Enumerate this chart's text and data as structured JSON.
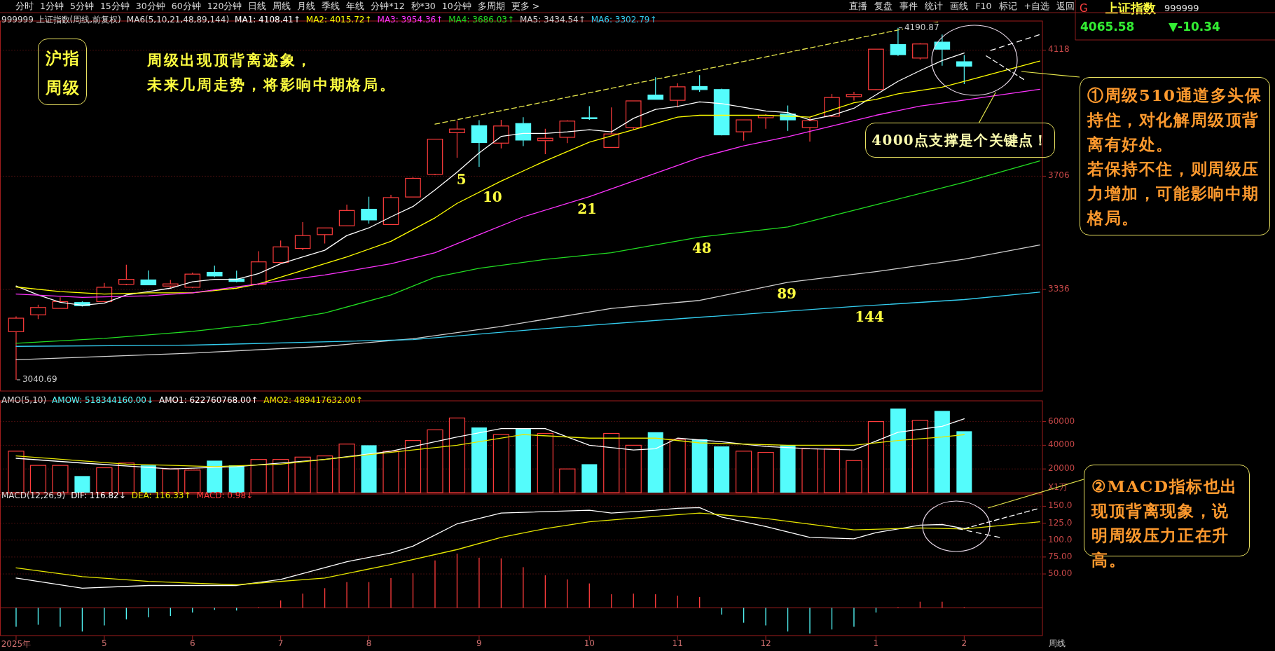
{
  "chart_data": [
    {
      "type": "candlestick",
      "title": "999999 上证指数(周线,前复权)",
      "legend_title": "MA6(5,10,21,48,89,144)",
      "legend": "top left",
      "grid": "y",
      "tick_labels": "y",
      "xlim": [
        "2025-04-02",
        "2026-02-26T20:00"
      ],
      "ylim": [
        3004,
        4213
      ],
      "yticks": [
        3336,
        3706,
        4118
      ],
      "x": [
        "2025-04-07",
        "2025-04-14",
        "2025-04-21",
        "2025-04-28",
        "2025-05-05",
        "2025-05-12",
        "2025-05-19",
        "2025-05-26",
        "2025-06-02",
        "2025-06-09",
        "2025-06-16",
        "2025-06-23",
        "2025-06-30",
        "2025-07-07",
        "2025-07-14",
        "2025-07-21",
        "2025-07-28",
        "2025-08-04",
        "2025-08-11",
        "2025-08-18",
        "2025-08-25",
        "2025-09-01",
        "2025-09-08",
        "2025-09-15",
        "2025-09-22",
        "2025-09-29",
        "2025-10-06",
        "2025-10-13",
        "2025-10-20",
        "2025-10-27",
        "2025-11-03",
        "2025-11-10",
        "2025-11-17",
        "2025-11-24",
        "2025-12-01",
        "2025-12-08",
        "2025-12-15",
        "2025-12-22",
        "2025-12-29",
        "2026-01-05",
        "2026-01-12",
        "2026-01-19",
        "2026-01-26",
        "2026-02-02"
      ],
      "ohlc": [
        [
          3198,
          3248,
          3040.69,
          3242
        ],
        [
          3253,
          3286,
          3239,
          3277
        ],
        [
          3274,
          3310,
          3274,
          3296
        ],
        [
          3293,
          3297,
          3280,
          3283
        ],
        [
          3296,
          3357,
          3294,
          3343
        ],
        [
          3353,
          3417,
          3350,
          3369
        ],
        [
          3367,
          3398,
          3350,
          3351
        ],
        [
          3347,
          3367,
          3340,
          3354
        ],
        [
          3343,
          3391,
          3340,
          3386
        ],
        [
          3392,
          3414,
          3376,
          3380
        ],
        [
          3370,
          3397,
          3359,
          3362
        ],
        [
          3353,
          3461,
          3350,
          3426
        ],
        [
          3424,
          3496,
          3423,
          3475
        ],
        [
          3470,
          3556,
          3464,
          3512
        ],
        [
          3515,
          3537,
          3486,
          3537
        ],
        [
          3544,
          3613,
          3543,
          3594
        ],
        [
          3598,
          3639,
          3551,
          3563
        ],
        [
          3548,
          3645,
          3548,
          3636
        ],
        [
          3638,
          3703,
          3638,
          3699
        ],
        [
          3712,
          3827,
          3709,
          3827
        ],
        [
          3848,
          3887,
          3766,
          3860
        ],
        [
          3871,
          3889,
          3737,
          3816
        ],
        [
          3814,
          3890,
          3797,
          3870
        ],
        [
          3878,
          3899,
          3804,
          3824
        ],
        [
          3822,
          3861,
          3778,
          3830
        ],
        [
          3833,
          3889,
          3814,
          3886
        ],
        [
          3897,
          3935,
          3890,
          3894
        ],
        [
          3800,
          3931,
          3800,
          3844
        ],
        [
          3865,
          3952,
          3858,
          3952
        ],
        [
          3971,
          4029,
          3957,
          3957
        ],
        [
          3954,
          4010,
          3931,
          3998
        ],
        [
          3999,
          4036,
          3982,
          3989
        ],
        [
          3989,
          3992,
          3839,
          3841
        ],
        [
          3851,
          3890,
          3822,
          3890
        ],
        [
          3897,
          3909,
          3861,
          3905
        ],
        [
          3909,
          3937,
          3854,
          3890
        ],
        [
          3865,
          3899,
          3819,
          3887
        ],
        [
          3902,
          3975,
          3899,
          3963
        ],
        [
          3966,
          3982,
          3953,
          3973
        ],
        [
          3989,
          4121,
          3987,
          4121
        ],
        [
          4136,
          4190.87,
          4099,
          4103
        ],
        [
          4092,
          4141,
          4087,
          4138
        ],
        [
          4144,
          4169,
          4067,
          4121
        ],
        [
          4080,
          4102,
          4007,
          4065.58
        ]
      ],
      "colors": [
        "#ff3c3c",
        "#ff3c3c",
        "#ff3c3c",
        "#54fcfc",
        "#ff3c3c",
        "#ff3c3c",
        "#54fcfc",
        "#ff3c3c",
        "#ff3c3c",
        "#54fcfc",
        "#54fcfc",
        "#ff3c3c",
        "#ff3c3c",
        "#ff3c3c",
        "#ff3c3c",
        "#ff3c3c",
        "#54fcfc",
        "#ff3c3c",
        "#ff3c3c",
        "#ff3c3c",
        "#ff3c3c",
        "#54fcfc",
        "#ff3c3c",
        "#54fcfc",
        "#ff3c3c",
        "#ff3c3c",
        "#54fcfc",
        "#ff3c3c",
        "#ff3c3c",
        "#54fcfc",
        "#ff3c3c",
        "#54fcfc",
        "#54fcfc",
        "#ff3c3c",
        "#ff3c3c",
        "#54fcfc",
        "#ff3c3c",
        "#ff3c3c",
        "#ff3c3c",
        "#ff3c3c",
        "#54fcfc",
        "#ff3c3c",
        "#54fcfc",
        "#54fcfc"
      ],
      "series": [
        {
          "type": "line",
          "name": "MA1: 4108.41↑",
          "color": "#ffffff",
          "x": [
            "2025-04-07",
            "2025-04-14",
            "2025-04-21",
            "2025-04-28",
            "2025-05-05",
            "2025-05-12",
            "2025-05-19",
            "2025-05-26",
            "2025-06-02",
            "2025-06-09",
            "2025-06-16",
            "2025-06-23",
            "2025-06-30",
            "2025-07-07",
            "2025-07-14",
            "2025-07-21",
            "2025-07-28",
            "2025-08-04",
            "2025-08-11",
            "2025-08-18",
            "2025-08-25",
            "2025-09-01",
            "2025-09-08",
            "2025-09-15",
            "2025-09-22",
            "2025-09-29",
            "2025-10-06",
            "2025-10-13",
            "2025-10-20",
            "2025-10-27",
            "2025-11-03",
            "2025-11-10",
            "2025-11-17",
            "2025-11-24",
            "2025-12-01",
            "2025-12-08",
            "2025-12-15",
            "2025-12-22",
            "2025-12-29",
            "2026-01-05",
            "2026-01-12",
            "2026-01-19",
            "2026-01-26",
            "2026-02-02"
          ],
          "values": [
            3347,
            3318,
            3294,
            3284,
            3291,
            3318,
            3329,
            3340,
            3361,
            3369,
            3369,
            3388,
            3420,
            3442,
            3464,
            3512,
            3537,
            3573,
            3607,
            3661,
            3719,
            3782,
            3836,
            3846,
            3846,
            3851,
            3858,
            3851,
            3895,
            3924,
            3934,
            3949,
            3943,
            3931,
            3919,
            3914,
            3890,
            3905,
            3928,
            3972,
            4016,
            4051,
            4084,
            4108.41
          ]
        },
        {
          "type": "line",
          "name": "MA2: 4015.72↑",
          "color": "#ffff00",
          "x": [
            "2025-04-07",
            "2025-04-21",
            "2025-05-05",
            "2025-05-19",
            "2025-06-02",
            "2025-06-16",
            "2025-06-23",
            "2025-07-07",
            "2025-07-21",
            "2025-08-04",
            "2025-08-18",
            "2025-08-25",
            "2025-09-08",
            "2025-09-22",
            "2025-10-06",
            "2025-10-20",
            "2025-11-03",
            "2025-11-10",
            "2025-11-17",
            "2025-12-01",
            "2025-12-15",
            "2025-12-29",
            "2026-01-05",
            "2026-01-12",
            "2026-01-26",
            "2026-02-02",
            "2026-02-26"
          ],
          "values": [
            3344,
            3329,
            3321,
            3325,
            3325,
            3340,
            3354,
            3398,
            3442,
            3493,
            3570,
            3617,
            3690,
            3756,
            3817,
            3858,
            3899,
            3905,
            3905,
            3905,
            3899,
            3946,
            3957,
            3975,
            3997,
            4015.72,
            4082
          ]
        },
        {
          "type": "line",
          "name": "MA3: 3954.36↑",
          "color": "#ff33ff",
          "x": [
            "2025-04-07",
            "2025-04-28",
            "2025-05-19",
            "2025-06-02",
            "2025-06-23",
            "2025-07-14",
            "2025-08-04",
            "2025-08-18",
            "2025-09-01",
            "2025-09-15",
            "2025-10-06",
            "2025-10-20",
            "2025-11-03",
            "2025-11-10",
            "2025-11-24",
            "2025-12-08",
            "2025-12-22",
            "2026-01-05",
            "2026-01-19",
            "2026-02-02",
            "2026-02-26"
          ],
          "values": [
            3321,
            3310,
            3315,
            3325,
            3354,
            3383,
            3420,
            3456,
            3515,
            3573,
            3639,
            3690,
            3741,
            3767,
            3805,
            3835,
            3870,
            3905,
            3935,
            3954.36,
            3990
          ]
        },
        {
          "type": "line",
          "name": "MA4: 3686.03↑",
          "color": "#22dd22",
          "x": [
            "2025-04-07",
            "2025-05-05",
            "2025-06-02",
            "2025-06-23",
            "2025-07-14",
            "2025-08-04",
            "2025-08-18",
            "2025-09-01",
            "2025-09-22",
            "2025-10-13",
            "2025-11-10",
            "2025-12-08",
            "2026-01-05",
            "2026-02-02",
            "2026-02-26"
          ],
          "values": [
            3160,
            3176,
            3199,
            3223,
            3259,
            3318,
            3376,
            3405,
            3434,
            3456,
            3507,
            3540,
            3613,
            3686.03,
            3756
          ]
        },
        {
          "type": "line",
          "name": "MA5: 3434.54↑",
          "color": "#d0d0d0",
          "x": [
            "2025-04-07",
            "2025-06-02",
            "2025-07-14",
            "2025-08-11",
            "2025-09-08",
            "2025-10-13",
            "2025-11-10",
            "2025-12-08",
            "2026-01-05",
            "2026-02-02",
            "2026-02-26"
          ],
          "values": [
            3106,
            3128,
            3150,
            3175,
            3215,
            3274,
            3300,
            3359,
            3394,
            3434.54,
            3481
          ]
        },
        {
          "type": "line",
          "name": "MA6: 3302.79↑",
          "color": "#33ccee",
          "x": [
            "2025-04-07",
            "2025-06-02",
            "2025-08-11",
            "2025-09-22",
            "2025-11-10",
            "2025-12-29",
            "2026-02-02",
            "2026-02-26"
          ],
          "values": [
            3150,
            3154,
            3172,
            3208,
            3245,
            3280,
            3302.79,
            3327
          ]
        },
        {
          "type": "line",
          "color": "#e6e64c",
          "line_style": "dashed",
          "x": [
            "2025-08-18",
            "2026-01-24T14:00"
          ],
          "values": [
            3876,
            4210
          ]
        },
        {
          "type": "line",
          "color": "#ffffff",
          "line_style": "dashed",
          "x": [
            "2026-02-10T10:00",
            "2026-02-25T19:00"
          ],
          "values": [
            4117,
            4168
          ]
        },
        {
          "type": "line",
          "color": "#ffffff",
          "line_style": "dashed",
          "x": [
            "2026-02-09",
            "2026-02-20T22:00"
          ],
          "values": [
            4099,
            4022
          ]
        }
      ],
      "annotations": [
        "沪指周级",
        "周级出现顶背离迹象，",
        "未来几周走势，将影响中期格局。",
        {
          "text": "4000点支撑是个关键点！",
          "x": "2026-02-12",
          "y": 3980
        },
        "①周级510通道多头保持住，对化解周级顶背离有好处。",
        "若保持不住，则周级压力增加，可能影响中期格局。",
        {
          "text": "5",
          "x": "2025-08-26T10:00",
          "y": 3732
        },
        {
          "text": "10",
          "x": "2025-09-05T05:00",
          "y": 3675
        },
        {
          "text": "21",
          "x": "2025-10-05T07:00",
          "y": 3637
        },
        {
          "text": "48",
          "x": "2025-11-10T17:00",
          "y": 3507
        },
        {
          "text": "89",
          "x": "2025-12-07T16:00",
          "y": 3359
        },
        {
          "text": "144",
          "x": "2026-01-02T22:00",
          "y": 3283
        },
        {
          "text": "4190.87",
          "x": "2026-01-12",
          "y": 4190.87
        },
        {
          "text": "3040.69",
          "x": "2025-04-07",
          "y": 3040.69
        }
      ]
    },
    {
      "type": "bar",
      "title": "AMO(5,10)",
      "legend": "top left",
      "grid": "y",
      "tick_labels": "y",
      "xlim": [
        "2025-04-02",
        "2026-02-26T20:00"
      ],
      "ylim": [
        0,
        77500
      ],
      "yticks": [
        20000,
        40000,
        60000
      ],
      "x": [
        "2025-04-07",
        "2025-04-14",
        "2025-04-21",
        "2025-04-28",
        "2025-05-05",
        "2025-05-12",
        "2025-05-19",
        "2025-05-26",
        "2025-06-02",
        "2025-06-09",
        "2025-06-16",
        "2025-06-23",
        "2025-06-30",
        "2025-07-07",
        "2025-07-14",
        "2025-07-21",
        "2025-07-28",
        "2025-08-04",
        "2025-08-11",
        "2025-08-18",
        "2025-08-25",
        "2025-09-01",
        "2025-09-08",
        "2025-09-15",
        "2025-09-22",
        "2025-09-29",
        "2025-10-06",
        "2025-10-13",
        "2025-10-20",
        "2025-10-27",
        "2025-11-03",
        "2025-11-10",
        "2025-11-17",
        "2025-11-24",
        "2025-12-01",
        "2025-12-08",
        "2025-12-15",
        "2025-12-22",
        "2025-12-29",
        "2026-01-05",
        "2026-01-12",
        "2026-01-19",
        "2026-01-26",
        "2026-02-02"
      ],
      "series": [
        {
          "type": "bar",
          "name": "AMOW: 518344160.00↓",
          "values": [
            35000,
            23000,
            23000,
            14000,
            21000,
            25000,
            23000,
            20000,
            19000,
            27000,
            23000,
            28000,
            28000,
            30000,
            31000,
            41000,
            40000,
            35000,
            44000,
            53000,
            63000,
            55000,
            49000,
            54000,
            50000,
            20000,
            24000,
            50000,
            40000,
            51000,
            45000,
            45000,
            39000,
            35000,
            34000,
            40000,
            37000,
            37000,
            27000,
            60000,
            71000,
            61000,
            69000,
            51834
          ],
          "colors": [
            "#ff3c3c",
            "#ff3c3c",
            "#ff3c3c",
            "#54fcfc",
            "#ff3c3c",
            "#ff3c3c",
            "#54fcfc",
            "#ff3c3c",
            "#ff3c3c",
            "#54fcfc",
            "#54fcfc",
            "#ff3c3c",
            "#ff3c3c",
            "#ff3c3c",
            "#ff3c3c",
            "#ff3c3c",
            "#54fcfc",
            "#ff3c3c",
            "#ff3c3c",
            "#ff3c3c",
            "#ff3c3c",
            "#54fcfc",
            "#ff3c3c",
            "#54fcfc",
            "#ff3c3c",
            "#ff3c3c",
            "#54fcfc",
            "#ff3c3c",
            "#ff3c3c",
            "#54fcfc",
            "#ff3c3c",
            "#54fcfc",
            "#54fcfc",
            "#ff3c3c",
            "#ff3c3c",
            "#54fcfc",
            "#ff3c3c",
            "#ff3c3c",
            "#ff3c3c",
            "#ff3c3c",
            "#54fcfc",
            "#ff3c3c",
            "#54fcfc",
            "#54fcfc"
          ]
        },
        {
          "type": "line",
          "name": "AMO1: 622760768.00↑",
          "color": "#ffffff",
          "x": [
            "2025-04-07",
            "2025-04-28",
            "2025-05-26",
            "2025-06-16",
            "2025-07-14",
            "2025-08-04",
            "2025-08-25",
            "2025-09-08",
            "2025-09-22",
            "2025-10-06",
            "2025-10-20",
            "2025-10-27",
            "2025-11-03",
            "2025-11-17",
            "2025-12-01",
            "2025-12-15",
            "2025-12-29",
            "2026-01-12",
            "2026-01-26",
            "2026-02-02"
          ],
          "values": [
            29000,
            25000,
            20000,
            22000,
            28000,
            35000,
            47000,
            54000,
            54000,
            40000,
            36000,
            37000,
            46000,
            43000,
            39000,
            37000,
            36000,
            51000,
            56000,
            62276
          ]
        },
        {
          "type": "line",
          "name": "AMO2: 489417632.00↑",
          "color": "#e6e600",
          "x": [
            "2025-04-07",
            "2025-05-12",
            "2025-06-09",
            "2025-06-30",
            "2025-07-28",
            "2025-08-25",
            "2025-09-15",
            "2025-10-06",
            "2025-10-27",
            "2025-11-10",
            "2025-12-08",
            "2025-12-29",
            "2026-01-12",
            "2026-01-26",
            "2026-02-02"
          ],
          "values": [
            31000,
            24000,
            22000,
            24000,
            32000,
            40000,
            49000,
            46000,
            46000,
            42000,
            40000,
            40000,
            44000,
            47000,
            48942
          ]
        }
      ],
      "annotations": [
        "X1万"
      ]
    },
    {
      "type": "line",
      "title": "MACD(12,26,9)",
      "legend": "top left",
      "grid": "y",
      "xlim": [
        "2025-04-02",
        "2026-02-26T20:00"
      ],
      "ylim": [
        -41,
        168
      ],
      "ref_lines": [
        {
          "axis": "y",
          "value": 0,
          "color": "#a02020"
        }
      ],
      "yticks": [
        {
          "value": 50,
          "label": "50.00"
        },
        {
          "value": 75,
          "label": "75.00"
        },
        {
          "value": 100,
          "label": "100.0"
        },
        {
          "value": 125,
          "label": "125.0"
        },
        {
          "value": 150,
          "label": "150.0"
        }
      ],
      "xticks": [
        {
          "value": "2025-04-07",
          "label": "2025年"
        },
        {
          "value": "2025-05-05",
          "label": "5"
        },
        {
          "value": "2025-06-02",
          "label": "6"
        },
        {
          "value": "2025-06-30",
          "label": "7"
        },
        {
          "value": "2025-07-28",
          "label": "8"
        },
        {
          "value": "2025-09-01",
          "label": "9"
        },
        {
          "value": "2025-10-06",
          "label": "10"
        },
        {
          "value": "2025-11-03",
          "label": "11"
        },
        {
          "value": "2025-12-01",
          "label": "12"
        },
        {
          "value": "2026-01-05",
          "label": "1"
        },
        {
          "value": "2026-02-02",
          "label": "2"
        }
      ],
      "series": [
        {
          "name": "DIF: 116.82↓",
          "color": "#ffffff",
          "x": [
            "2025-04-07",
            "2025-04-28",
            "2025-05-19",
            "2025-06-16",
            "2025-06-30",
            "2025-07-21",
            "2025-08-04",
            "2025-08-11",
            "2025-08-25",
            "2025-09-08",
            "2025-10-06",
            "2025-10-13",
            "2025-10-27",
            "2025-11-03",
            "2025-11-10",
            "2025-11-17",
            "2025-12-01",
            "2025-12-15",
            "2025-12-29",
            "2026-01-05",
            "2026-01-19",
            "2026-01-26",
            "2026-02-02"
          ],
          "values": [
            44,
            29,
            33,
            33,
            42,
            68,
            81,
            91,
            124,
            140,
            144,
            140,
            144,
            147,
            148,
            134,
            120,
            104,
            102,
            111,
            122,
            123,
            116.82
          ]
        },
        {
          "name": "DEA: 116.33↑",
          "color": "#e6e600",
          "x": [
            "2025-04-07",
            "2025-04-28",
            "2025-05-19",
            "2025-06-16",
            "2025-07-14",
            "2025-08-04",
            "2025-08-25",
            "2025-09-08",
            "2025-09-22",
            "2025-10-06",
            "2025-10-27",
            "2025-11-10",
            "2025-12-01",
            "2025-12-29",
            "2026-01-19",
            "2026-02-02",
            "2026-02-26"
          ],
          "values": [
            59,
            46,
            39,
            34,
            44,
            64,
            86,
            104,
            117,
            127,
            135,
            140,
            132,
            115,
            118,
            116.33,
            127
          ]
        },
        {
          "type": "bar",
          "name": "MACD: 0.98↓",
          "x": [
            "2025-04-07",
            "2025-04-14",
            "2025-04-21",
            "2025-04-28",
            "2025-05-05",
            "2025-05-12",
            "2025-05-19",
            "2025-05-26",
            "2025-06-02",
            "2025-06-09",
            "2025-06-16",
            "2025-06-23",
            "2025-06-30",
            "2025-07-07",
            "2025-07-14",
            "2025-07-21",
            "2025-07-28",
            "2025-08-04",
            "2025-08-11",
            "2025-08-18",
            "2025-08-25",
            "2025-09-01",
            "2025-09-08",
            "2025-09-15",
            "2025-09-22",
            "2025-09-29",
            "2025-10-06",
            "2025-10-13",
            "2025-10-20",
            "2025-10-27",
            "2025-11-03",
            "2025-11-10",
            "2025-11-17",
            "2025-11-24",
            "2025-12-01",
            "2025-12-08",
            "2025-12-15",
            "2025-12-22",
            "2025-12-29",
            "2026-01-05",
            "2026-01-12",
            "2026-01-19",
            "2026-01-26",
            "2026-02-02"
          ],
          "values": [
            -28,
            -25,
            -28,
            -35,
            -26,
            -17,
            -14,
            -12,
            -7,
            -3,
            -4,
            1,
            11,
            21,
            29,
            38,
            38,
            44,
            51,
            70,
            80,
            74,
            73,
            60,
            48,
            42,
            36,
            20,
            21,
            20,
            18,
            16,
            -10,
            -22,
            -26,
            -35,
            -38,
            -32,
            -28,
            -7,
            1,
            9,
            9,
            0.98
          ],
          "colors": [
            "#54fcfc",
            "#54fcfc",
            "#54fcfc",
            "#54fcfc",
            "#54fcfc",
            "#54fcfc",
            "#54fcfc",
            "#54fcfc",
            "#54fcfc",
            "#54fcfc",
            "#54fcfc",
            "#ff3c3c",
            "#ff3c3c",
            "#ff3c3c",
            "#ff3c3c",
            "#ff3c3c",
            "#ff3c3c",
            "#ff3c3c",
            "#ff3c3c",
            "#ff3c3c",
            "#ff3c3c",
            "#ff3c3c",
            "#ff3c3c",
            "#ff3c3c",
            "#ff3c3c",
            "#ff3c3c",
            "#ff3c3c",
            "#ff3c3c",
            "#ff3c3c",
            "#ff3c3c",
            "#ff3c3c",
            "#ff3c3c",
            "#54fcfc",
            "#54fcfc",
            "#54fcfc",
            "#54fcfc",
            "#54fcfc",
            "#54fcfc",
            "#54fcfc",
            "#54fcfc",
            "#ff3c3c",
            "#ff3c3c",
            "#ff3c3c",
            "#ff3c3c"
          ]
        },
        {
          "color": "#ffffff",
          "line_style": "dashed",
          "x": [
            "2026-02-02",
            "2026-02-25T02:00"
          ],
          "values": [
            116.82,
            146
          ]
        },
        {
          "color": "#ffffff",
          "line_style": "dashed",
          "x": [
            "2026-01-30T22:00",
            "2026-02-13T05:00"
          ],
          "values": [
            117,
            104
          ]
        }
      ],
      "annotations": [
        "②MACD指标也出现顶背离现象，说明周级压力正在升高。",
        "周线"
      ]
    },
    {
      "type": "other",
      "annotations": [
        "分时",
        "1分钟",
        "5分钟",
        "15分钟",
        "30分钟",
        "60分钟",
        "120分钟",
        "日线",
        "周线",
        "月线",
        "季线",
        "年线",
        "分钟*12",
        "秒*30",
        "10分钟",
        "多周期",
        "更多 >"
      ]
    },
    {
      "type": "other",
      "annotations": [
        "直播",
        "复盘",
        "事件",
        "统计",
        "画线",
        "F10",
        "标记",
        "+自选",
        "返回"
      ]
    },
    {
      "type": "other",
      "annotations": [
        "G",
        "上证指数",
        "999999",
        "4065.58",
        "▼-10.34"
      ]
    }
  ]
}
